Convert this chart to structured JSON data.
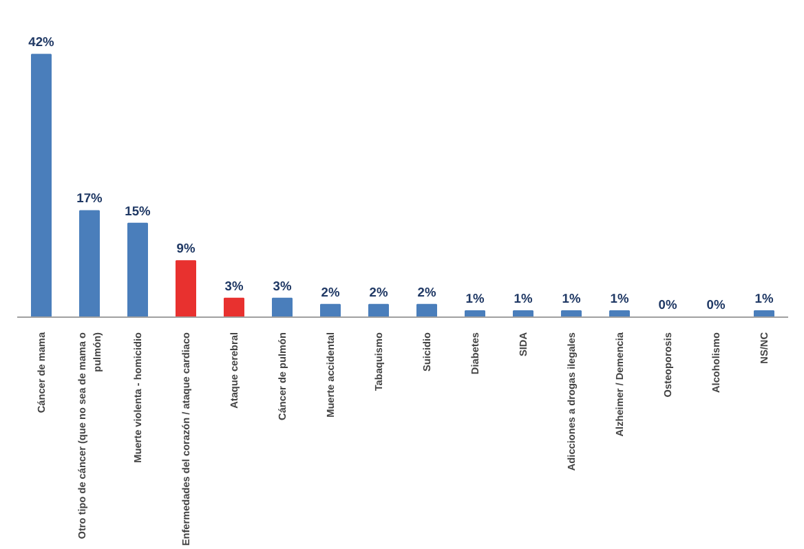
{
  "chart_data": {
    "type": "bar",
    "categories": [
      "Cáncer de mama",
      "Otro tipo de cáncer (que no sea de mama o pulmón)",
      "Muerte violenta - homicidio",
      "Enfermedades del corazón / ataque cardiaco",
      "Ataque cerebral",
      "Cáncer de pulmón",
      "Muerte accidental",
      "Tabaquismo",
      "Suicidio",
      "Diabetes",
      "SIDA",
      "Adicciones a drogas ilegales",
      "Alzheimer / Demencia",
      "Osteoporosis",
      "Alcoholismo",
      "NS/NC"
    ],
    "values": [
      42,
      17,
      15,
      9,
      3,
      3,
      2,
      2,
      2,
      1,
      1,
      1,
      1,
      0,
      0,
      1
    ],
    "colors": [
      "#4a7ebb",
      "#4a7ebb",
      "#4a7ebb",
      "#e8312f",
      "#e8312f",
      "#4a7ebb",
      "#4a7ebb",
      "#4a7ebb",
      "#4a7ebb",
      "#4a7ebb",
      "#4a7ebb",
      "#4a7ebb",
      "#4a7ebb",
      "#4a7ebb",
      "#4a7ebb",
      "#4a7ebb"
    ],
    "value_labels": [
      "42%",
      "17%",
      "15%",
      "9%",
      "3%",
      "3%",
      "2%",
      "2%",
      "2%",
      "1%",
      "1%",
      "1%",
      "1%",
      "0%",
      "0%",
      "1%"
    ],
    "grid": false
  }
}
